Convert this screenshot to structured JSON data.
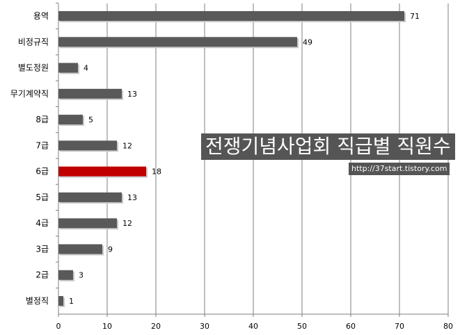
{
  "overlay": {
    "title": "전쟁기념사업회 직급별 직원수",
    "url": "http://37start.tistory.com"
  },
  "colors": {
    "bar": "#595959",
    "highlight": "#c00000",
    "grid": "#7f7f7f",
    "overlay_bg": "#555555"
  },
  "chart_data": {
    "type": "bar",
    "orientation": "horizontal",
    "categories": [
      "용역",
      "비정규직",
      "별도정원",
      "무기계약직",
      "8급",
      "7급",
      "6급",
      "5급",
      "4급",
      "3급",
      "2급",
      "별정직"
    ],
    "values": [
      71,
      49,
      4,
      13,
      5,
      12,
      18,
      13,
      12,
      9,
      3,
      1
    ],
    "highlight_category": "6급",
    "xlim": [
      0,
      80
    ],
    "xticks": [
      0,
      10,
      20,
      30,
      40,
      50,
      60,
      70,
      80
    ],
    "grid": true,
    "data_labels": true
  }
}
